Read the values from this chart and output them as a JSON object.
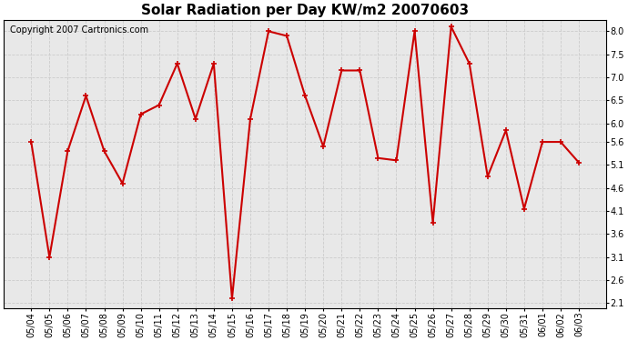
{
  "title": "Solar Radiation per Day KW/m2 20070603",
  "copyright_text": "Copyright 2007 Cartronics.com",
  "dates": [
    "05/04",
    "05/05",
    "05/06",
    "05/07",
    "05/08",
    "05/09",
    "05/10",
    "05/11",
    "05/12",
    "05/13",
    "05/14",
    "05/15",
    "05/16",
    "05/17",
    "05/18",
    "05/19",
    "05/20",
    "05/21",
    "05/22",
    "05/23",
    "05/24",
    "05/25",
    "05/26",
    "05/27",
    "05/28",
    "05/29",
    "05/30",
    "05/31",
    "06/01",
    "06/02",
    "06/03"
  ],
  "values": [
    5.6,
    3.1,
    5.4,
    6.6,
    5.4,
    4.7,
    6.2,
    6.4,
    7.3,
    6.1,
    7.3,
    2.2,
    6.1,
    8.0,
    7.9,
    6.6,
    5.5,
    7.15,
    7.15,
    5.25,
    5.2,
    8.0,
    3.85,
    8.1,
    7.3,
    4.85,
    5.85,
    4.15,
    5.6,
    5.6,
    5.15
  ],
  "line_color": "#cc0000",
  "marker": "+",
  "marker_size": 5,
  "line_width": 1.5,
  "ylim": [
    2.0,
    8.25
  ],
  "ytick_values": [
    2.1,
    2.6,
    3.1,
    3.6,
    4.1,
    4.6,
    5.1,
    5.6,
    6.0,
    6.5,
    7.0,
    7.5,
    8.0
  ],
  "ytick_labels": [
    "2.1",
    "2.6",
    "3.1",
    "3.6",
    "4.1",
    "4.6",
    "5.1",
    "5.6",
    "6.0",
    "6.5",
    "7.0",
    "7.5",
    "8.0"
  ],
  "background_color": "#ffffff",
  "plot_bg_color": "#e8e8e8",
  "grid_color": "#cccccc",
  "title_fontsize": 11,
  "copyright_fontsize": 7,
  "tick_fontsize": 7,
  "fig_width": 6.9,
  "fig_height": 3.75,
  "dpi": 100
}
